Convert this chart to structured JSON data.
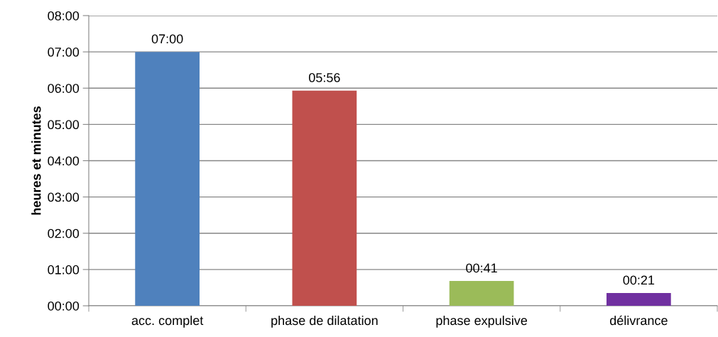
{
  "chart_data": {
    "type": "bar",
    "ylabel": "heures et minutes",
    "categories": [
      "acc. complet",
      "phase de dilatation",
      "phase expulsive",
      "délivrance"
    ],
    "values": [
      7.0,
      5.933,
      0.683,
      0.35
    ],
    "colors": [
      "#4f81bd",
      "#c0504d",
      "#9bbb59",
      "#7030a0"
    ],
    "value_labels": [
      "07:00",
      "05:56",
      "00:41",
      "00:21"
    ],
    "ylim": [
      0,
      8
    ],
    "yticks": [
      {
        "value": 0,
        "label": "00:00"
      },
      {
        "value": 1,
        "label": "01:00"
      },
      {
        "value": 2,
        "label": "02:00"
      },
      {
        "value": 3,
        "label": "03:00"
      },
      {
        "value": 4,
        "label": "04:00"
      },
      {
        "value": 5,
        "label": "05:00"
      },
      {
        "value": 6,
        "label": "06:00"
      },
      {
        "value": 7,
        "label": "07:00"
      },
      {
        "value": 8,
        "label": "08:00"
      }
    ],
    "grid": "y",
    "legend": false
  }
}
